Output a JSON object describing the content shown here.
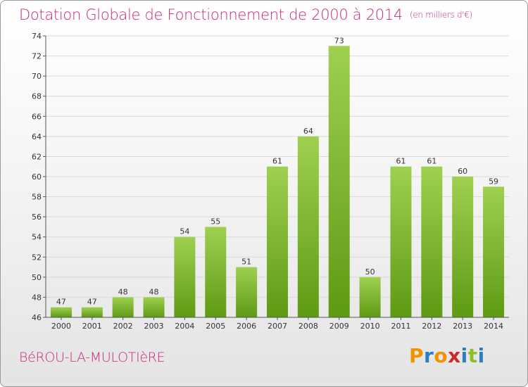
{
  "header": {
    "title": "Dotation Globale de Fonctionnement de 2000 à 2014",
    "unit": "(en milliers d'€)"
  },
  "footer": {
    "commune": "BéROU-LA-MULOTIèRE",
    "logo_letters": [
      "P",
      "r",
      "o",
      "x",
      "i",
      "t",
      "i"
    ],
    "logo_colors": [
      "#f29400",
      "#2a7fc4",
      "#f29400",
      "#cc2929",
      "#2a7fc4",
      "#8dbf2c",
      "#2a7fc4"
    ]
  },
  "colors": {
    "bar_top": "#9fd050",
    "bar_bottom": "#5e9a14",
    "title": "#c8287d",
    "grid": "#d9d9d9"
  },
  "chart_data": {
    "type": "bar",
    "categories": [
      "2000",
      "2001",
      "2002",
      "2003",
      "2004",
      "2005",
      "2006",
      "2007",
      "2008",
      "2009",
      "2010",
      "2011",
      "2012",
      "2013",
      "2014"
    ],
    "values": [
      47,
      47,
      48,
      48,
      54,
      55,
      51,
      61,
      64,
      73,
      50,
      61,
      61,
      60,
      59
    ],
    "ylim": [
      46,
      74
    ],
    "yticks": [
      46,
      48,
      50,
      52,
      54,
      56,
      58,
      60,
      62,
      64,
      66,
      68,
      70,
      72,
      74
    ],
    "grid": true
  }
}
